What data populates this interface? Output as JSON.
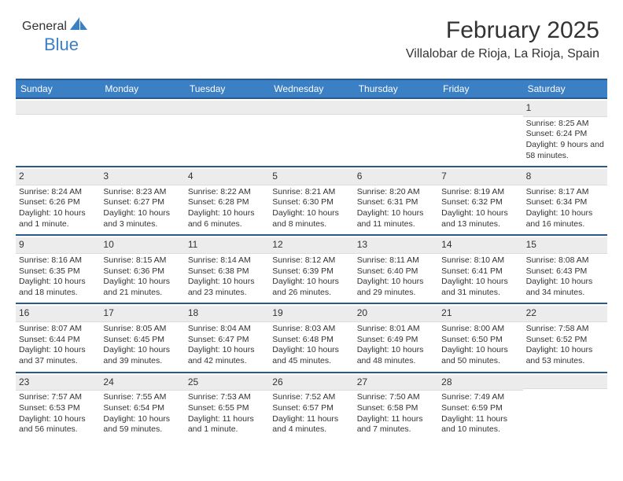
{
  "logo": {
    "part1": "General",
    "part2": "Blue"
  },
  "header": {
    "title": "February 2025",
    "subtitle": "Villalobar de Rioja, La Rioja, Spain"
  },
  "colors": {
    "header_bg": "#3b7fc4",
    "header_border": "#2a5a8c",
    "daynum_bg": "#ececec",
    "text": "#333333"
  },
  "weekdays": [
    "Sunday",
    "Monday",
    "Tuesday",
    "Wednesday",
    "Thursday",
    "Friday",
    "Saturday"
  ],
  "weeks": [
    [
      {
        "empty": true
      },
      {
        "empty": true
      },
      {
        "empty": true
      },
      {
        "empty": true
      },
      {
        "empty": true
      },
      {
        "empty": true
      },
      {
        "day": "1",
        "sunrise": "Sunrise: 8:25 AM",
        "sunset": "Sunset: 6:24 PM",
        "daylight": "Daylight: 9 hours and 58 minutes."
      }
    ],
    [
      {
        "day": "2",
        "sunrise": "Sunrise: 8:24 AM",
        "sunset": "Sunset: 6:26 PM",
        "daylight": "Daylight: 10 hours and 1 minute."
      },
      {
        "day": "3",
        "sunrise": "Sunrise: 8:23 AM",
        "sunset": "Sunset: 6:27 PM",
        "daylight": "Daylight: 10 hours and 3 minutes."
      },
      {
        "day": "4",
        "sunrise": "Sunrise: 8:22 AM",
        "sunset": "Sunset: 6:28 PM",
        "daylight": "Daylight: 10 hours and 6 minutes."
      },
      {
        "day": "5",
        "sunrise": "Sunrise: 8:21 AM",
        "sunset": "Sunset: 6:30 PM",
        "daylight": "Daylight: 10 hours and 8 minutes."
      },
      {
        "day": "6",
        "sunrise": "Sunrise: 8:20 AM",
        "sunset": "Sunset: 6:31 PM",
        "daylight": "Daylight: 10 hours and 11 minutes."
      },
      {
        "day": "7",
        "sunrise": "Sunrise: 8:19 AM",
        "sunset": "Sunset: 6:32 PM",
        "daylight": "Daylight: 10 hours and 13 minutes."
      },
      {
        "day": "8",
        "sunrise": "Sunrise: 8:17 AM",
        "sunset": "Sunset: 6:34 PM",
        "daylight": "Daylight: 10 hours and 16 minutes."
      }
    ],
    [
      {
        "day": "9",
        "sunrise": "Sunrise: 8:16 AM",
        "sunset": "Sunset: 6:35 PM",
        "daylight": "Daylight: 10 hours and 18 minutes."
      },
      {
        "day": "10",
        "sunrise": "Sunrise: 8:15 AM",
        "sunset": "Sunset: 6:36 PM",
        "daylight": "Daylight: 10 hours and 21 minutes."
      },
      {
        "day": "11",
        "sunrise": "Sunrise: 8:14 AM",
        "sunset": "Sunset: 6:38 PM",
        "daylight": "Daylight: 10 hours and 23 minutes."
      },
      {
        "day": "12",
        "sunrise": "Sunrise: 8:12 AM",
        "sunset": "Sunset: 6:39 PM",
        "daylight": "Daylight: 10 hours and 26 minutes."
      },
      {
        "day": "13",
        "sunrise": "Sunrise: 8:11 AM",
        "sunset": "Sunset: 6:40 PM",
        "daylight": "Daylight: 10 hours and 29 minutes."
      },
      {
        "day": "14",
        "sunrise": "Sunrise: 8:10 AM",
        "sunset": "Sunset: 6:41 PM",
        "daylight": "Daylight: 10 hours and 31 minutes."
      },
      {
        "day": "15",
        "sunrise": "Sunrise: 8:08 AM",
        "sunset": "Sunset: 6:43 PM",
        "daylight": "Daylight: 10 hours and 34 minutes."
      }
    ],
    [
      {
        "day": "16",
        "sunrise": "Sunrise: 8:07 AM",
        "sunset": "Sunset: 6:44 PM",
        "daylight": "Daylight: 10 hours and 37 minutes."
      },
      {
        "day": "17",
        "sunrise": "Sunrise: 8:05 AM",
        "sunset": "Sunset: 6:45 PM",
        "daylight": "Daylight: 10 hours and 39 minutes."
      },
      {
        "day": "18",
        "sunrise": "Sunrise: 8:04 AM",
        "sunset": "Sunset: 6:47 PM",
        "daylight": "Daylight: 10 hours and 42 minutes."
      },
      {
        "day": "19",
        "sunrise": "Sunrise: 8:03 AM",
        "sunset": "Sunset: 6:48 PM",
        "daylight": "Daylight: 10 hours and 45 minutes."
      },
      {
        "day": "20",
        "sunrise": "Sunrise: 8:01 AM",
        "sunset": "Sunset: 6:49 PM",
        "daylight": "Daylight: 10 hours and 48 minutes."
      },
      {
        "day": "21",
        "sunrise": "Sunrise: 8:00 AM",
        "sunset": "Sunset: 6:50 PM",
        "daylight": "Daylight: 10 hours and 50 minutes."
      },
      {
        "day": "22",
        "sunrise": "Sunrise: 7:58 AM",
        "sunset": "Sunset: 6:52 PM",
        "daylight": "Daylight: 10 hours and 53 minutes."
      }
    ],
    [
      {
        "day": "23",
        "sunrise": "Sunrise: 7:57 AM",
        "sunset": "Sunset: 6:53 PM",
        "daylight": "Daylight: 10 hours and 56 minutes."
      },
      {
        "day": "24",
        "sunrise": "Sunrise: 7:55 AM",
        "sunset": "Sunset: 6:54 PM",
        "daylight": "Daylight: 10 hours and 59 minutes."
      },
      {
        "day": "25",
        "sunrise": "Sunrise: 7:53 AM",
        "sunset": "Sunset: 6:55 PM",
        "daylight": "Daylight: 11 hours and 1 minute."
      },
      {
        "day": "26",
        "sunrise": "Sunrise: 7:52 AM",
        "sunset": "Sunset: 6:57 PM",
        "daylight": "Daylight: 11 hours and 4 minutes."
      },
      {
        "day": "27",
        "sunrise": "Sunrise: 7:50 AM",
        "sunset": "Sunset: 6:58 PM",
        "daylight": "Daylight: 11 hours and 7 minutes."
      },
      {
        "day": "28",
        "sunrise": "Sunrise: 7:49 AM",
        "sunset": "Sunset: 6:59 PM",
        "daylight": "Daylight: 11 hours and 10 minutes."
      },
      {
        "empty": true
      }
    ]
  ]
}
